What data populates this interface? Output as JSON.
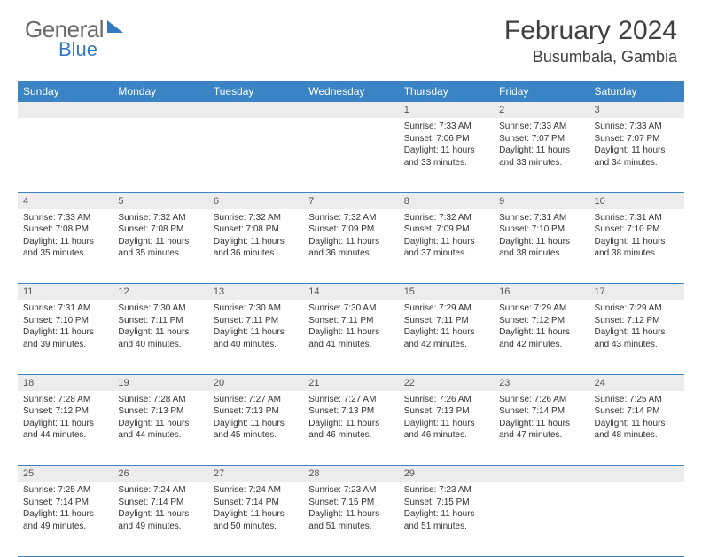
{
  "logo": {
    "text1": "General",
    "text2": "Blue"
  },
  "title": "February 2024",
  "location": "Busumbala, Gambia",
  "colors": {
    "header_bg": "#3a83c5",
    "header_text": "#ffffff",
    "daynum_bg": "#ececec",
    "row_border": "#3a83c5",
    "logo_gray": "#6a6a6a",
    "logo_blue": "#3478bd"
  },
  "day_headers": [
    "Sunday",
    "Monday",
    "Tuesday",
    "Wednesday",
    "Thursday",
    "Friday",
    "Saturday"
  ],
  "weeks": [
    {
      "nums": [
        "",
        "",
        "",
        "",
        "1",
        "2",
        "3"
      ],
      "cells": [
        null,
        null,
        null,
        null,
        {
          "sunrise": "Sunrise: 7:33 AM",
          "sunset": "Sunset: 7:06 PM",
          "day1": "Daylight: 11 hours",
          "day2": "and 33 minutes."
        },
        {
          "sunrise": "Sunrise: 7:33 AM",
          "sunset": "Sunset: 7:07 PM",
          "day1": "Daylight: 11 hours",
          "day2": "and 33 minutes."
        },
        {
          "sunrise": "Sunrise: 7:33 AM",
          "sunset": "Sunset: 7:07 PM",
          "day1": "Daylight: 11 hours",
          "day2": "and 34 minutes."
        }
      ]
    },
    {
      "nums": [
        "4",
        "5",
        "6",
        "7",
        "8",
        "9",
        "10"
      ],
      "cells": [
        {
          "sunrise": "Sunrise: 7:33 AM",
          "sunset": "Sunset: 7:08 PM",
          "day1": "Daylight: 11 hours",
          "day2": "and 35 minutes."
        },
        {
          "sunrise": "Sunrise: 7:32 AM",
          "sunset": "Sunset: 7:08 PM",
          "day1": "Daylight: 11 hours",
          "day2": "and 35 minutes."
        },
        {
          "sunrise": "Sunrise: 7:32 AM",
          "sunset": "Sunset: 7:08 PM",
          "day1": "Daylight: 11 hours",
          "day2": "and 36 minutes."
        },
        {
          "sunrise": "Sunrise: 7:32 AM",
          "sunset": "Sunset: 7:09 PM",
          "day1": "Daylight: 11 hours",
          "day2": "and 36 minutes."
        },
        {
          "sunrise": "Sunrise: 7:32 AM",
          "sunset": "Sunset: 7:09 PM",
          "day1": "Daylight: 11 hours",
          "day2": "and 37 minutes."
        },
        {
          "sunrise": "Sunrise: 7:31 AM",
          "sunset": "Sunset: 7:10 PM",
          "day1": "Daylight: 11 hours",
          "day2": "and 38 minutes."
        },
        {
          "sunrise": "Sunrise: 7:31 AM",
          "sunset": "Sunset: 7:10 PM",
          "day1": "Daylight: 11 hours",
          "day2": "and 38 minutes."
        }
      ]
    },
    {
      "nums": [
        "11",
        "12",
        "13",
        "14",
        "15",
        "16",
        "17"
      ],
      "cells": [
        {
          "sunrise": "Sunrise: 7:31 AM",
          "sunset": "Sunset: 7:10 PM",
          "day1": "Daylight: 11 hours",
          "day2": "and 39 minutes."
        },
        {
          "sunrise": "Sunrise: 7:30 AM",
          "sunset": "Sunset: 7:11 PM",
          "day1": "Daylight: 11 hours",
          "day2": "and 40 minutes."
        },
        {
          "sunrise": "Sunrise: 7:30 AM",
          "sunset": "Sunset: 7:11 PM",
          "day1": "Daylight: 11 hours",
          "day2": "and 40 minutes."
        },
        {
          "sunrise": "Sunrise: 7:30 AM",
          "sunset": "Sunset: 7:11 PM",
          "day1": "Daylight: 11 hours",
          "day2": "and 41 minutes."
        },
        {
          "sunrise": "Sunrise: 7:29 AM",
          "sunset": "Sunset: 7:11 PM",
          "day1": "Daylight: 11 hours",
          "day2": "and 42 minutes."
        },
        {
          "sunrise": "Sunrise: 7:29 AM",
          "sunset": "Sunset: 7:12 PM",
          "day1": "Daylight: 11 hours",
          "day2": "and 42 minutes."
        },
        {
          "sunrise": "Sunrise: 7:29 AM",
          "sunset": "Sunset: 7:12 PM",
          "day1": "Daylight: 11 hours",
          "day2": "and 43 minutes."
        }
      ]
    },
    {
      "nums": [
        "18",
        "19",
        "20",
        "21",
        "22",
        "23",
        "24"
      ],
      "cells": [
        {
          "sunrise": "Sunrise: 7:28 AM",
          "sunset": "Sunset: 7:12 PM",
          "day1": "Daylight: 11 hours",
          "day2": "and 44 minutes."
        },
        {
          "sunrise": "Sunrise: 7:28 AM",
          "sunset": "Sunset: 7:13 PM",
          "day1": "Daylight: 11 hours",
          "day2": "and 44 minutes."
        },
        {
          "sunrise": "Sunrise: 7:27 AM",
          "sunset": "Sunset: 7:13 PM",
          "day1": "Daylight: 11 hours",
          "day2": "and 45 minutes."
        },
        {
          "sunrise": "Sunrise: 7:27 AM",
          "sunset": "Sunset: 7:13 PM",
          "day1": "Daylight: 11 hours",
          "day2": "and 46 minutes."
        },
        {
          "sunrise": "Sunrise: 7:26 AM",
          "sunset": "Sunset: 7:13 PM",
          "day1": "Daylight: 11 hours",
          "day2": "and 46 minutes."
        },
        {
          "sunrise": "Sunrise: 7:26 AM",
          "sunset": "Sunset: 7:14 PM",
          "day1": "Daylight: 11 hours",
          "day2": "and 47 minutes."
        },
        {
          "sunrise": "Sunrise: 7:25 AM",
          "sunset": "Sunset: 7:14 PM",
          "day1": "Daylight: 11 hours",
          "day2": "and 48 minutes."
        }
      ]
    },
    {
      "nums": [
        "25",
        "26",
        "27",
        "28",
        "29",
        "",
        ""
      ],
      "cells": [
        {
          "sunrise": "Sunrise: 7:25 AM",
          "sunset": "Sunset: 7:14 PM",
          "day1": "Daylight: 11 hours",
          "day2": "and 49 minutes."
        },
        {
          "sunrise": "Sunrise: 7:24 AM",
          "sunset": "Sunset: 7:14 PM",
          "day1": "Daylight: 11 hours",
          "day2": "and 49 minutes."
        },
        {
          "sunrise": "Sunrise: 7:24 AM",
          "sunset": "Sunset: 7:14 PM",
          "day1": "Daylight: 11 hours",
          "day2": "and 50 minutes."
        },
        {
          "sunrise": "Sunrise: 7:23 AM",
          "sunset": "Sunset: 7:15 PM",
          "day1": "Daylight: 11 hours",
          "day2": "and 51 minutes."
        },
        {
          "sunrise": "Sunrise: 7:23 AM",
          "sunset": "Sunset: 7:15 PM",
          "day1": "Daylight: 11 hours",
          "day2": "and 51 minutes."
        },
        null,
        null
      ]
    }
  ]
}
